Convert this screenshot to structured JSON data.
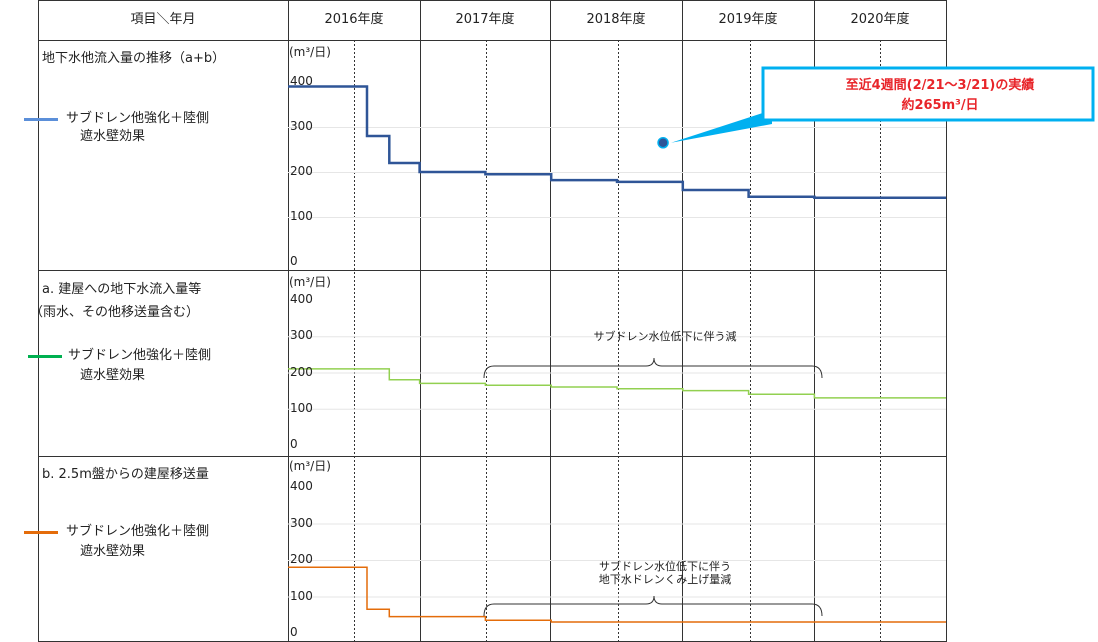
{
  "header": {
    "item_col": "項目＼年月",
    "years": [
      "2016年度",
      "2017年度",
      "2018年度",
      "2019年度",
      "2020年度"
    ]
  },
  "unit_label": "(m³/日)",
  "panels": [
    {
      "title_lines": [
        "地下水他流入量の推移（a+b）"
      ],
      "legend_label_lines": [
        "サブドレン他強化＋陸側",
        "遮水壁効果"
      ],
      "color": "#2f5597",
      "ticks": [
        "400",
        "300",
        "200",
        "100",
        "0"
      ]
    },
    {
      "title_lines": [
        "a. 建屋への地下水流入量等",
        "（雨水、その他移送量含む）"
      ],
      "legend_label_lines": [
        "サブドレン他強化＋陸側",
        "遮水壁効果"
      ],
      "color": "#00b050",
      "ticks": [
        "400",
        "300",
        "200",
        "100",
        "0"
      ]
    },
    {
      "title_lines": [
        "b. 2.5m盤からの建屋移送量"
      ],
      "legend_label_lines": [
        "サブドレン他強化＋陸側",
        "遮水壁効果"
      ],
      "color": "#e46c0a",
      "ticks": [
        "400",
        "300",
        "200",
        "100",
        "0"
      ]
    }
  ],
  "callout": {
    "line1": "至近4週間(2/21～3/21)の実績",
    "line2": "約265m³/日",
    "color": "#00b0f0"
  },
  "annotations": {
    "a": "サブドレン水位低下に伴う減",
    "b_line1": "サブドレン水位低下に伴う",
    "b_line2": "地下水ドレンくみ上げ量減"
  },
  "chart_data": [
    {
      "type": "line",
      "title": "地下水他流入量の推移（a+b）",
      "ylabel": "(m³/日)",
      "ylim": [
        0,
        400
      ],
      "x_categories": [
        "2016年度",
        "2017年度",
        "2018年度",
        "2019年度",
        "2020年度"
      ],
      "series": [
        {
          "name": "サブドレン他強化＋陸側遮水壁効果",
          "x": [
            2016.0,
            2016.6,
            2016.6,
            2016.77,
            2016.77,
            2017.0,
            2017.0,
            2017.5,
            2017.5,
            2018.0,
            2018.0,
            2018.5,
            2018.5,
            2019.0,
            2019.0,
            2019.5,
            2019.5,
            2020.0,
            2020.0,
            2021.0
          ],
          "y": [
            390,
            390,
            280,
            280,
            220,
            220,
            200,
            200,
            195,
            195,
            182,
            182,
            178,
            178,
            160,
            160,
            145,
            145,
            143,
            143
          ]
        }
      ],
      "points": [
        {
          "x": 2018.85,
          "y": 265,
          "label": "至近4週間(2/21～3/21)の実績 約265m³/日"
        }
      ]
    },
    {
      "type": "line",
      "title": "a. 建屋への地下水流入量等（雨水、その他移送量含む）",
      "ylabel": "(m³/日)",
      "ylim": [
        0,
        400
      ],
      "series": [
        {
          "name": "サブドレン他強化＋陸側遮水壁効果",
          "x": [
            2016.0,
            2016.77,
            2016.77,
            2017.0,
            2017.0,
            2017.5,
            2017.5,
            2018.0,
            2018.0,
            2018.5,
            2018.5,
            2019.0,
            2019.0,
            2019.5,
            2019.5,
            2020.0,
            2020.0,
            2021.0
          ],
          "y": [
            210,
            210,
            180,
            180,
            170,
            170,
            165,
            165,
            160,
            160,
            155,
            155,
            150,
            150,
            140,
            140,
            130,
            130
          ]
        }
      ],
      "annotation": "サブドレン水位低下に伴う減"
    },
    {
      "type": "line",
      "title": "b. 2.5m盤からの建屋移送量",
      "ylabel": "(m³/日)",
      "ylim": [
        0,
        400
      ],
      "series": [
        {
          "name": "サブドレン他強化＋陸側遮水壁効果",
          "x": [
            2016.0,
            2016.6,
            2016.6,
            2016.77,
            2016.77,
            2017.5,
            2017.5,
            2018.0,
            2018.0,
            2021.0
          ],
          "y": [
            180,
            180,
            65,
            65,
            45,
            45,
            35,
            35,
            30,
            30
          ]
        }
      ],
      "annotation": "サブドレン水位低下に伴う 地下水ドレンくみ上げ量減"
    }
  ]
}
